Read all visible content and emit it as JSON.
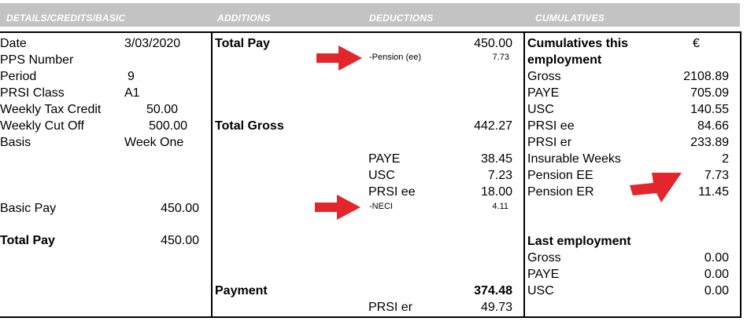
{
  "headers": {
    "details": "DETAILS/CREDITS/BASIC",
    "additions": "ADDITIONS",
    "deductions": "DEDUCTIONS",
    "cumulatives": "CUMULATIVES"
  },
  "details": [
    {
      "label": "Date",
      "value": "3/03/2020"
    },
    {
      "label": "PPS Number",
      "value": ""
    },
    {
      "label": "Period",
      "value": "9"
    },
    {
      "label": "PRSI Class",
      "value": "A1"
    },
    {
      "label": "Weekly Tax Credit",
      "value": "50.00"
    },
    {
      "label": "Weekly Cut Off",
      "value": "500.00"
    },
    {
      "label": "Basis",
      "value": "Week One"
    }
  ],
  "basic_pay": {
    "label": "Basic Pay",
    "value": "450.00"
  },
  "total_pay_left": {
    "label": "Total Pay",
    "value": "450.00"
  },
  "additions": {
    "total_pay_label": "Total Pay",
    "total_pay_value": "450.00",
    "pension_label": "-Pension (ee)",
    "pension_value": "7.73",
    "total_gross_label": "Total Gross",
    "total_gross_value": "442.27",
    "payment_label": "Payment",
    "payment_value": "374.48"
  },
  "deductions": {
    "paye_label": "PAYE",
    "paye_value": "38.45",
    "usc_label": "USC",
    "usc_value": "7.23",
    "prsi_ee_label": "PRSI ee",
    "prsi_ee_value": "18.00",
    "neci_label": "-NECI",
    "neci_value": "4.11",
    "prsi_er_label": "PRSI er",
    "prsi_er_value": "49.73"
  },
  "cumulatives": {
    "title_line1": "Cumulatives this",
    "title_line2": "employment",
    "currency": "€",
    "rows": [
      {
        "label": "Gross",
        "value": "2108.89"
      },
      {
        "label": "PAYE",
        "value": "705.09"
      },
      {
        "label": "USC",
        "value": "140.55"
      },
      {
        "label": "PRSI ee",
        "value": "84.66"
      },
      {
        "label": "PRSI er",
        "value": "233.89"
      },
      {
        "label": "Insurable Weeks",
        "value": "2"
      },
      {
        "label": "Pension EE",
        "value": "7.73"
      },
      {
        "label": "Pension ER",
        "value": "11.45"
      }
    ],
    "last_title": "Last employment",
    "last_rows": [
      {
        "label": "Gross",
        "value": "0.00"
      },
      {
        "label": "PAYE",
        "value": "0.00"
      },
      {
        "label": "USC",
        "value": "0.00"
      }
    ]
  },
  "colors": {
    "header_bg": "#c3c3c3",
    "arrow": "#e3262b"
  },
  "icons": [
    "arrow-right-icon"
  ]
}
